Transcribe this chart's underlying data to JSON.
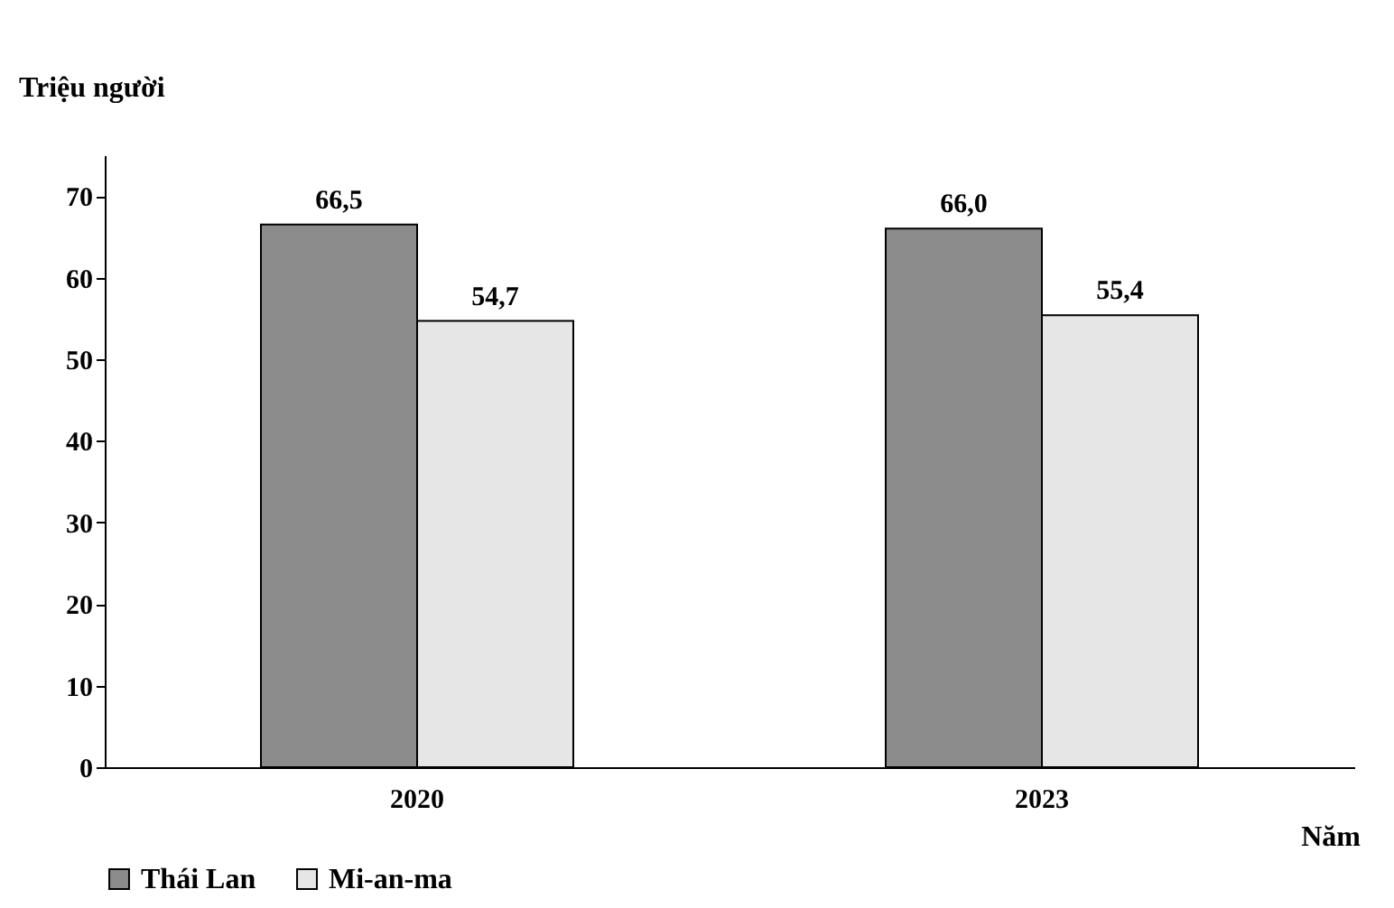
{
  "chart_data": {
    "type": "bar",
    "ylabel": "Triệu người",
    "xlabel": "Năm",
    "categories": [
      "2020",
      "2023"
    ],
    "series": [
      {
        "name": "Thái Lan",
        "color": "#8c8c8c",
        "values": [
          66.5,
          66.0
        ],
        "value_labels": [
          "66,5",
          "66,0"
        ]
      },
      {
        "name": "Mi-an-ma",
        "color": "#e6e6e6",
        "values": [
          54.7,
          55.4
        ],
        "value_labels": [
          "54,7",
          "55,4"
        ]
      }
    ],
    "ylim": [
      0,
      75
    ],
    "yticks": [
      0,
      10,
      20,
      30,
      40,
      50,
      60,
      70
    ],
    "grid": false,
    "legend": "bottom"
  }
}
